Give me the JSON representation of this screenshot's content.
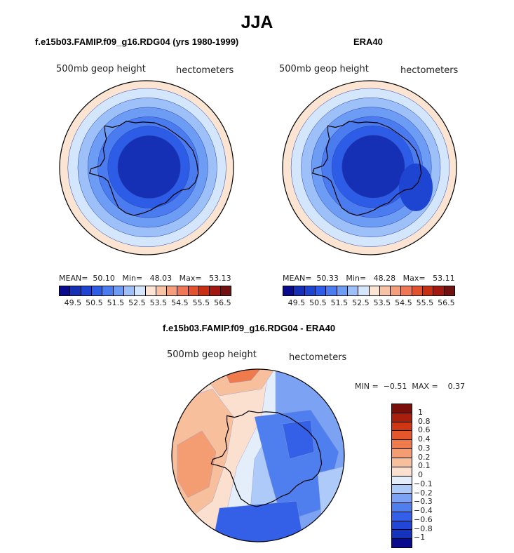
{
  "page": {
    "title": "JJA"
  },
  "colors": {
    "abs_scale": [
      "#0a0a8c",
      "#1530b4",
      "#1e45d2",
      "#2d5de6",
      "#4a7cf0",
      "#6d9cf5",
      "#9ec0f8",
      "#d4e6fb",
      "#fbe4d2",
      "#f8c2a4",
      "#f59e7c",
      "#ef7755",
      "#e2522f",
      "#c82e12",
      "#a01810",
      "#701010"
    ],
    "diff_scale": [
      "#0a0a8c",
      "#1633bd",
      "#2247d8",
      "#3360e6",
      "#4f7fef",
      "#7ca2f4",
      "#aecaf9",
      "#e4eefb",
      "#fce0cf",
      "#f8bf9d",
      "#f49d72",
      "#ef7a4c",
      "#e5562d",
      "#cf3614",
      "#aa1e0d",
      "#7a0e08"
    ],
    "coast": "#000000"
  },
  "chart_data": [
    {
      "type": "heatmap",
      "projection": "south-polar-stereographic",
      "title": "f.e15b03.FAMIP.f09_g16.RDG04 (yrs 1980-1999)",
      "field_label": "500mb geop height",
      "units_label": "hectometers",
      "stats": {
        "mean_label": "MEAN=",
        "mean": "50.10",
        "min_label": "Min=",
        "min": "48.03",
        "max_label": "Max=",
        "max": "53.13"
      },
      "colorbar_ticks": [
        "49.5",
        "50.5",
        "51.5",
        "52.5",
        "53.5",
        "54.5",
        "55.5",
        "56.5"
      ],
      "contour_levels": [
        49.0,
        49.5,
        50.0,
        50.5,
        51.0,
        51.5,
        52.0,
        52.5,
        53.0,
        53.5,
        54.0,
        54.5,
        55.0,
        55.5,
        56.0,
        56.5
      ],
      "contour_rings": [
        49.5,
        50.5,
        51.0,
        51.5,
        52.0,
        52.5,
        53.0
      ]
    },
    {
      "type": "heatmap",
      "projection": "south-polar-stereographic",
      "title": "ERA40",
      "field_label": "500mb geop height",
      "units_label": "hectometers",
      "stats": {
        "mean_label": "MEAN=",
        "mean": "50.33",
        "min_label": "Min=",
        "min": "48.28",
        "max_label": "Max=",
        "max": "53.11"
      },
      "colorbar_ticks": [
        "49.5",
        "50.5",
        "51.5",
        "52.5",
        "53.5",
        "54.5",
        "55.5",
        "56.5"
      ],
      "contour_levels": [
        49.0,
        49.5,
        50.0,
        50.5,
        51.0,
        51.5,
        52.0,
        52.5,
        53.0,
        53.5,
        54.0,
        54.5,
        55.0,
        55.5,
        56.0,
        56.5
      ],
      "contour_rings": [
        49.5,
        50.5,
        51.0,
        51.5,
        52.0,
        52.5,
        53.0
      ]
    },
    {
      "type": "heatmap",
      "projection": "south-polar-stereographic",
      "title": "f.e15b03.FAMIP.f09_g16.RDG04 - ERA40",
      "field_label": "500mb geop height",
      "units_label": "hectometers",
      "stats": {
        "min_label": "MIN =",
        "min": "−0.51",
        "max_label": "MAX =",
        "max": "0.37"
      },
      "colorbar_ticks": [
        "1",
        "0.8",
        "0.6",
        "0.4",
        "0.3",
        "0.2",
        "0.1",
        "0",
        "−0.1",
        "−0.2",
        "−0.3",
        "−0.4",
        "−0.6",
        "−0.8",
        "−1"
      ]
    }
  ]
}
